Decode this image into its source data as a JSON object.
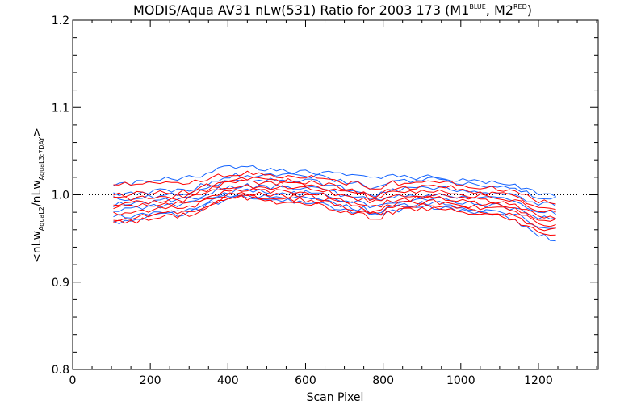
{
  "chart_data": {
    "type": "line",
    "title": {
      "main": "MODIS/Aqua AV31 nLw(531) Ratio for 2003 173 (M1",
      "m1_sup": "BLUE",
      "mid": ", M2",
      "m2_sup": "RED",
      "end": ")"
    },
    "xlabel": "Scan Pixel",
    "ylabel": {
      "lead": "<nLw",
      "sub1": "AquaL2",
      "mid": "/nLw",
      "sub2": "AquaL3:7DAY",
      "end": ">"
    },
    "xlim": [
      0,
      1354
    ],
    "ylim": [
      0.8,
      1.2
    ],
    "x_ticks": [
      0,
      200,
      400,
      600,
      800,
      1000,
      1200
    ],
    "x_tick_labels": [
      "0",
      "200",
      "400",
      "600",
      "800",
      "1000",
      "1200"
    ],
    "y_ticks": [
      0.8,
      0.9,
      1.0,
      1.1,
      1.2
    ],
    "y_tick_labels": [
      "0.8",
      "0.9",
      "1.0",
      "1.1",
      "1.2"
    ],
    "reference_line": 1.0,
    "x_start": 105,
    "x_step": 15,
    "x_end": 1245,
    "series_groups": [
      {
        "name": "M1",
        "color": "#1464ff"
      },
      {
        "name": "M2",
        "color": "#ff0000"
      }
    ],
    "curves": [
      {
        "group": "M1",
        "anchors": [
          1.012,
          1.018,
          1.032,
          1.026,
          1.022,
          1.02,
          1.015,
          1.0
        ],
        "seed": 3
      },
      {
        "group": "M1",
        "anchors": [
          1.002,
          1.005,
          1.022,
          1.022,
          1.012,
          1.018,
          1.01,
          0.996
        ],
        "seed": 7
      },
      {
        "group": "M1",
        "anchors": [
          0.996,
          1.0,
          1.016,
          1.016,
          1.004,
          1.008,
          1.003,
          0.988
        ],
        "seed": 11
      },
      {
        "group": "M1",
        "anchors": [
          0.989,
          0.994,
          1.01,
          1.008,
          0.997,
          1.0,
          0.995,
          0.98
        ],
        "seed": 13
      },
      {
        "group": "M1",
        "anchors": [
          0.982,
          0.988,
          1.004,
          1.002,
          0.991,
          0.995,
          0.988,
          0.972
        ],
        "seed": 17
      },
      {
        "group": "M1",
        "anchors": [
          0.975,
          0.982,
          1.0,
          0.996,
          0.984,
          0.99,
          0.982,
          0.962
        ],
        "seed": 19
      },
      {
        "group": "M1",
        "anchors": [
          0.968,
          0.978,
          0.997,
          0.992,
          0.98,
          0.986,
          0.978,
          0.95
        ],
        "seed": 23
      },
      {
        "group": "M2",
        "anchors": [
          1.013,
          1.012,
          1.025,
          1.02,
          1.012,
          1.015,
          1.008,
          0.99
        ],
        "seed": 29
      },
      {
        "group": "M2",
        "anchors": [
          1.0,
          1.003,
          1.018,
          1.015,
          1.003,
          1.01,
          1.002,
          0.985
        ],
        "seed": 31
      },
      {
        "group": "M2",
        "anchors": [
          0.995,
          0.998,
          1.014,
          1.012,
          1.0,
          1.005,
          0.998,
          0.98
        ],
        "seed": 37
      },
      {
        "group": "M2",
        "anchors": [
          0.99,
          0.994,
          1.01,
          1.008,
          0.995,
          1.0,
          0.993,
          0.975
        ],
        "seed": 41
      },
      {
        "group": "M2",
        "anchors": [
          0.985,
          0.99,
          1.006,
          1.003,
          0.99,
          0.996,
          0.989,
          0.97
        ],
        "seed": 43
      },
      {
        "group": "M2",
        "anchors": [
          0.979,
          0.985,
          1.002,
          0.998,
          0.986,
          0.992,
          0.985,
          0.966
        ],
        "seed": 47
      },
      {
        "group": "M2",
        "anchors": [
          0.973,
          0.98,
          0.998,
          0.994,
          0.982,
          0.988,
          0.98,
          0.96
        ],
        "seed": 53
      },
      {
        "group": "M2",
        "anchors": [
          0.968,
          0.976,
          0.996,
          0.99,
          0.978,
          0.984,
          0.976,
          0.956
        ],
        "seed": 59
      }
    ]
  }
}
